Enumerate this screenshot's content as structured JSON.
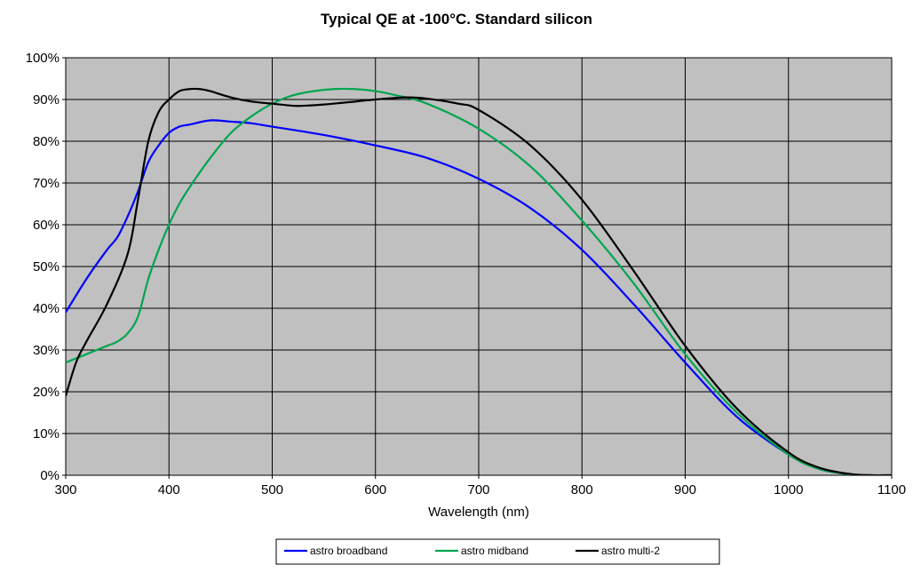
{
  "chart_data": {
    "type": "line",
    "title": "Typical QE at -100°C. Standard silicon",
    "xlabel": "Wavelength (nm)",
    "ylabel": "",
    "xlim": [
      300,
      1100
    ],
    "ylim": [
      0,
      100
    ],
    "x_ticks": [
      300,
      400,
      500,
      600,
      700,
      800,
      900,
      1000,
      1100
    ],
    "y_ticks": [
      0,
      10,
      20,
      30,
      40,
      50,
      60,
      70,
      80,
      90,
      100
    ],
    "y_tick_labels": [
      "0%",
      "10%",
      "20%",
      "30%",
      "40%",
      "50%",
      "60%",
      "70%",
      "80%",
      "90%",
      "100%"
    ],
    "grid": true,
    "plot_background": "#c0c0c0",
    "legend_position": "bottom",
    "series": [
      {
        "name": "astro broadband",
        "color": "#0000ff",
        "x": [
          300,
          320,
          340,
          350,
          360,
          370,
          380,
          390,
          400,
          410,
          420,
          440,
          460,
          480,
          500,
          550,
          600,
          650,
          700,
          750,
          800,
          850,
          900,
          950,
          1000,
          1030,
          1060,
          1080,
          1100
        ],
        "y": [
          39,
          47,
          54,
          57,
          62,
          68,
          75,
          79,
          82,
          83.5,
          84,
          85,
          84.7,
          84.3,
          83.5,
          81.5,
          79,
          76,
          71,
          64,
          54,
          41,
          27,
          14,
          5,
          1.5,
          0.2,
          0,
          0
        ]
      },
      {
        "name": "astro midband",
        "color": "#00a550",
        "x": [
          300,
          320,
          340,
          350,
          360,
          370,
          380,
          390,
          400,
          410,
          420,
          440,
          460,
          480,
          500,
          520,
          540,
          560,
          580,
          600,
          620,
          650,
          700,
          750,
          800,
          850,
          900,
          950,
          1000,
          1030,
          1060,
          1080,
          1100
        ],
        "y": [
          27,
          29,
          31,
          32,
          34,
          38,
          47,
          54,
          60,
          65,
          69,
          76,
          82,
          86,
          89,
          91,
          92,
          92.5,
          92.5,
          92,
          91,
          89,
          83,
          74,
          61,
          46,
          29,
          15,
          5,
          1.5,
          0.2,
          0,
          0
        ]
      },
      {
        "name": "astro multi-2",
        "color": "#000000",
        "x": [
          300,
          310,
          320,
          340,
          360,
          370,
          380,
          390,
          400,
          410,
          420,
          430,
          440,
          460,
          480,
          500,
          520,
          530,
          550,
          580,
          600,
          630,
          650,
          680,
          700,
          750,
          800,
          850,
          900,
          950,
          1000,
          1030,
          1060,
          1080,
          1100
        ],
        "y": [
          19,
          27,
          32,
          41,
          53,
          66,
          80,
          87,
          90,
          92,
          92.5,
          92.5,
          92,
          90.5,
          89.5,
          89,
          88.5,
          88.5,
          88.8,
          89.5,
          90,
          90.5,
          90.2,
          89,
          87.5,
          79,
          66,
          49,
          31,
          16,
          5.5,
          1.8,
          0.3,
          0,
          0
        ]
      }
    ]
  }
}
